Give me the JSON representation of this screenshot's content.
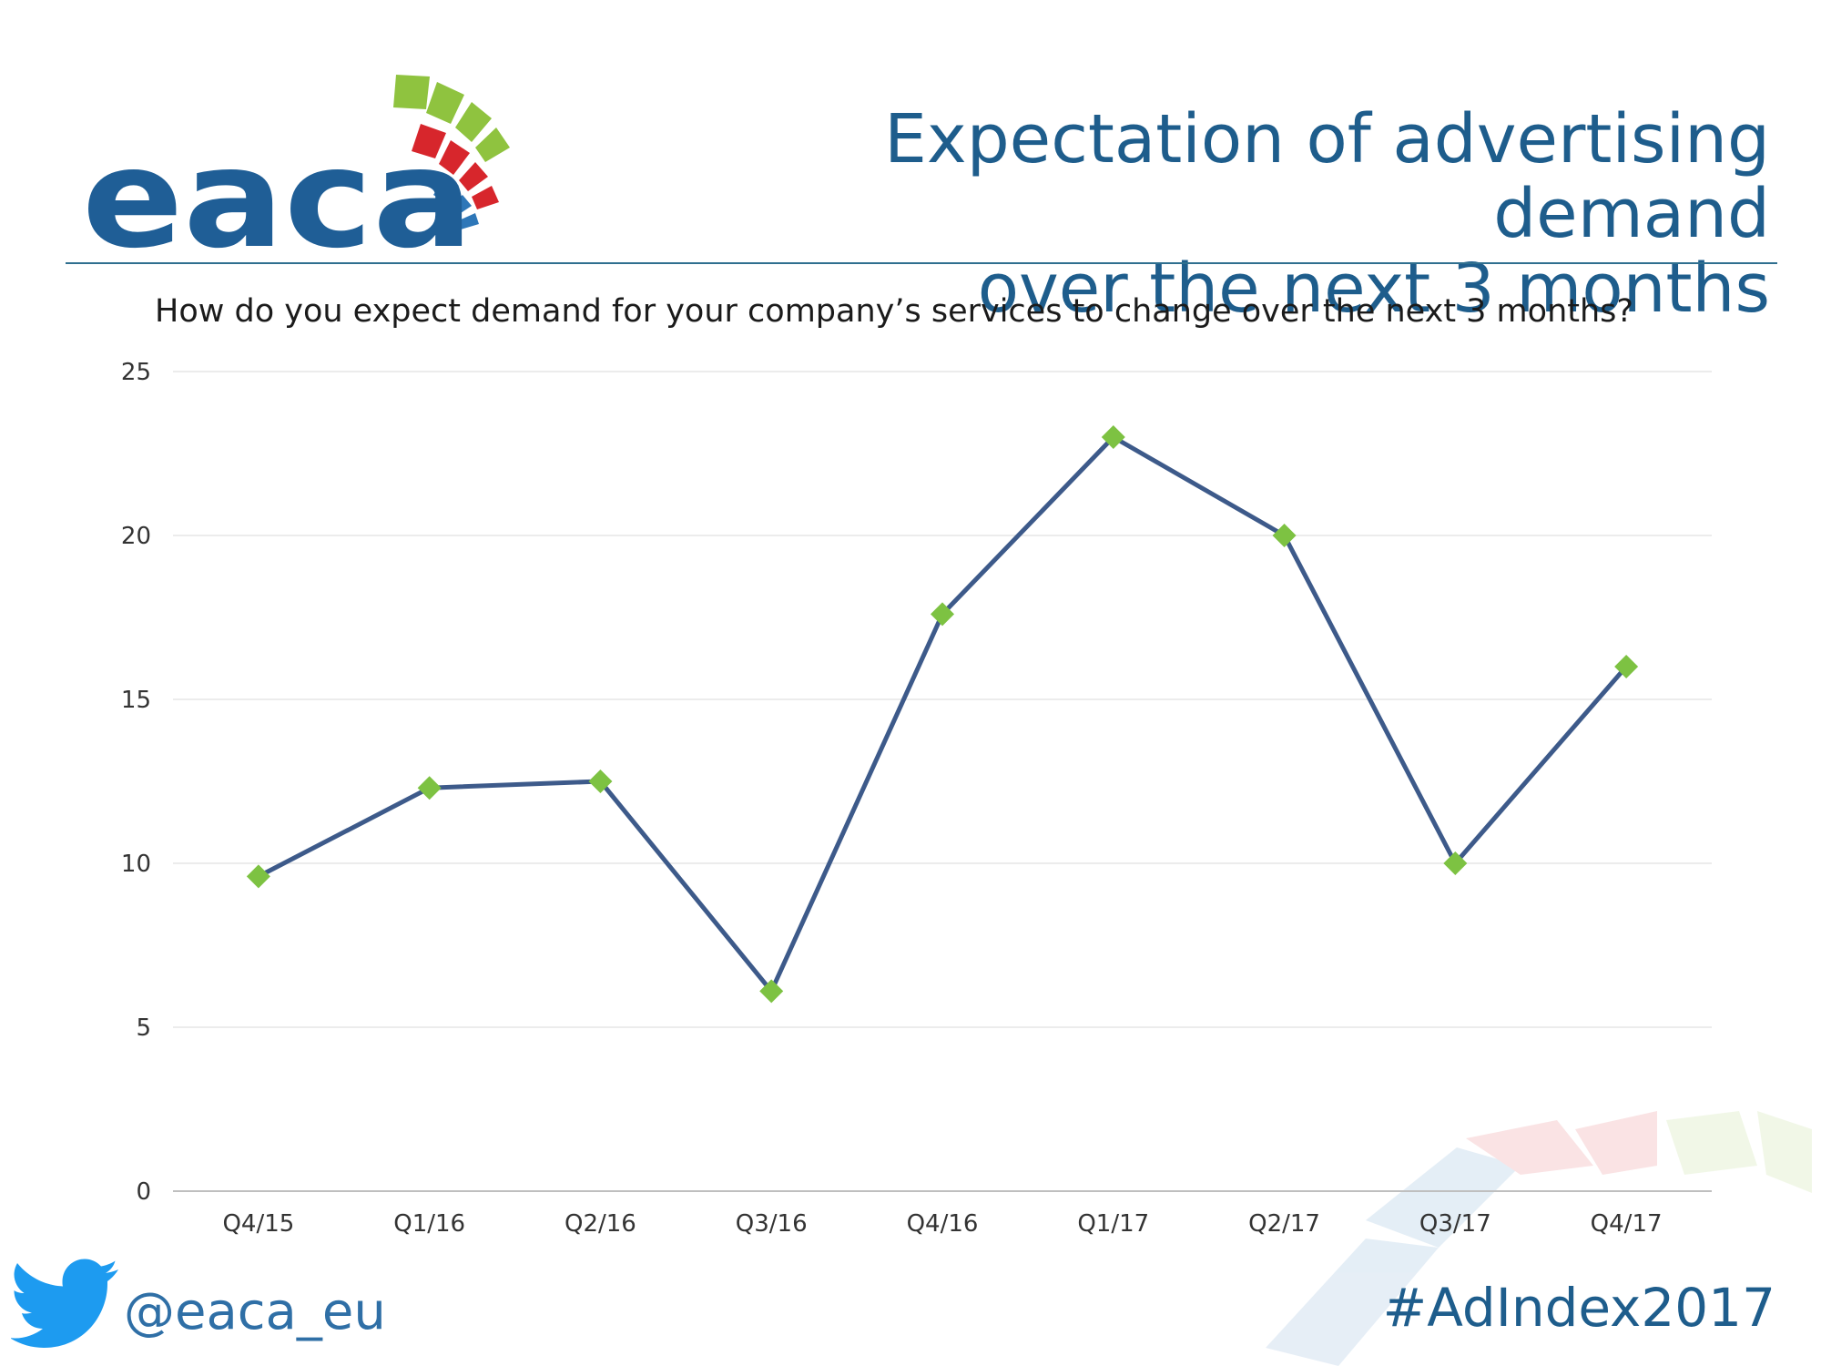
{
  "header": {
    "logo_text": "eaca",
    "title_lines": [
      "Expectation of advertising demand",
      "over the next 3 months"
    ]
  },
  "question": "How do you expect demand for your company’s services to change over the next 3 months?",
  "footer": {
    "twitter_handle": "@eaca_eu",
    "hashtag": "#AdIndex2017"
  },
  "colors": {
    "brand_blue": "#1e5d8c",
    "line": "#3d5a8a",
    "marker": "#7dc242",
    "logo_green": "#8fc33f",
    "logo_red": "#d7262c",
    "logo_blue": "#2e77b8",
    "twitter_blue": "#1d9bf0"
  },
  "icons": [
    "eaca-logo",
    "twitter-bird-icon"
  ],
  "chart_data": {
    "type": "line",
    "title": "",
    "xlabel": "",
    "ylabel": "",
    "categories": [
      "Q4/15",
      "Q1/16",
      "Q2/16",
      "Q3/16",
      "Q4/16",
      "Q1/17",
      "Q2/17",
      "Q3/17",
      "Q4/17"
    ],
    "series": [
      {
        "values": [
          9.6,
          12.3,
          12.5,
          6.1,
          17.6,
          23.0,
          20.0,
          10.0,
          16.0
        ]
      }
    ],
    "ylim": [
      0,
      25
    ],
    "yticks": [
      0,
      5,
      10,
      15,
      20,
      25
    ],
    "grid": true,
    "legend": "none"
  }
}
